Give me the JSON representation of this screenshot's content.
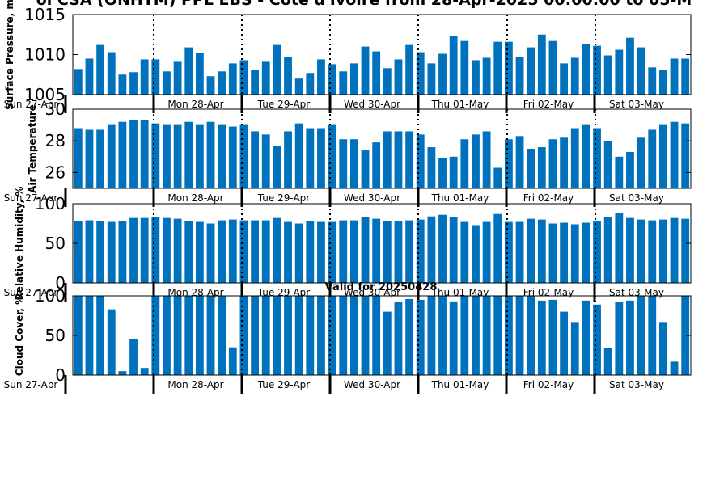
{
  "figure": {
    "title": "ol CSA (ONHTM) PPL EBS - Cote d'Ivoire from 28-Apr-2025 00:00:00 to 05-M",
    "valid_label": "Valid for 20250428",
    "bar_color": "#0072bd"
  },
  "chart_data": [
    {
      "type": "bar",
      "ylabel": "Surface Pressure, m",
      "ylim": [
        1005,
        1015
      ],
      "yticks": [
        1005,
        1010,
        1015
      ],
      "tick_labels": [
        "Sun 27-Apr",
        "Mon 28-Apr",
        "Tue 29-Apr",
        "Wed 30-Apr",
        "Thu 01-May",
        "Fri 02-May",
        "Sat 03-May"
      ],
      "values": [
        1008.2,
        1009.5,
        1011.2,
        1010.3,
        1007.5,
        1007.8,
        1009.4,
        1009.4,
        1007.9,
        1009.1,
        1010.9,
        1010.2,
        1007.3,
        1007.9,
        1008.9,
        1009.3,
        1008.1,
        1009.1,
        1011.2,
        1009.7,
        1007.0,
        1007.7,
        1009.4,
        1008.8,
        1007.9,
        1008.9,
        1011.0,
        1010.4,
        1008.3,
        1009.4,
        1011.2,
        1010.3,
        1008.9,
        1010.1,
        1012.3,
        1011.7,
        1009.3,
        1009.6,
        1011.6,
        1011.6,
        1009.7,
        1010.9,
        1012.5,
        1011.7,
        1008.9,
        1009.6,
        1011.3,
        1011.1,
        1009.9,
        1010.6,
        1012.1,
        1010.9,
        1008.4,
        1008.1,
        1009.5,
        1009.5
      ]
    },
    {
      "type": "bar",
      "ylabel": "Air Temperature",
      "ylim": [
        25,
        30
      ],
      "yticks": [
        26,
        28,
        30
      ],
      "tick_labels": [
        "Sun 27-Apr",
        "Mon 28-Apr",
        "Tue 29-Apr",
        "Wed 30-Apr",
        "Thu 01-May",
        "Fri 02-May",
        "Sat 03-May"
      ],
      "values": [
        28.8,
        28.7,
        28.7,
        29.0,
        29.2,
        29.3,
        29.3,
        29.1,
        29.0,
        29.0,
        29.2,
        29.0,
        29.2,
        29.0,
        28.9,
        29.0,
        28.6,
        28.4,
        27.7,
        28.6,
        29.1,
        28.8,
        28.8,
        29.0,
        28.1,
        28.1,
        27.4,
        27.9,
        28.6,
        28.6,
        28.6,
        28.4,
        27.6,
        26.9,
        27.0,
        28.1,
        28.4,
        28.6,
        26.3,
        28.1,
        28.3,
        27.5,
        27.6,
        28.1,
        28.2,
        28.8,
        29.0,
        28.8,
        28.0,
        27.0,
        27.3,
        28.2,
        28.7,
        29.0,
        29.2,
        29.1
      ]
    },
    {
      "type": "bar",
      "ylabel": "Relative Humidity, %",
      "ylim": [
        0,
        100
      ],
      "yticks": [
        0,
        50,
        100
      ],
      "tick_labels": [
        "Sun 27-Apr",
        "Mon 28-Apr",
        "Tue 29-Apr",
        "Wed 30-Apr",
        "Thu 01-May",
        "Fri 02-May",
        "Sat 03-May"
      ],
      "values": [
        78,
        79,
        78,
        77,
        78,
        82,
        82,
        83,
        82,
        81,
        78,
        77,
        75,
        79,
        80,
        79,
        79,
        79,
        82,
        77,
        75,
        78,
        77,
        77,
        79,
        79,
        83,
        81,
        78,
        78,
        79,
        80,
        84,
        86,
        83,
        77,
        73,
        77,
        87,
        77,
        77,
        81,
        80,
        75,
        76,
        74,
        76,
        78,
        83,
        88,
        82,
        80,
        79,
        80,
        82,
        81
      ]
    },
    {
      "type": "bar",
      "ylabel": "Cloud Cover, %",
      "ylim": [
        0,
        100
      ],
      "yticks": [
        0,
        50,
        100
      ],
      "tick_labels": [
        "Sun 27-Apr",
        "Mon 28-Apr",
        "Tue 29-Apr",
        "Wed 30-Apr",
        "Thu 01-May",
        "Fri 02-May",
        "Sat 03-May"
      ],
      "values": [
        100,
        100,
        100,
        83,
        5,
        45,
        9,
        100,
        100,
        100,
        100,
        100,
        100,
        100,
        35,
        100,
        100,
        100,
        100,
        100,
        100,
        100,
        100,
        100,
        100,
        100,
        100,
        100,
        80,
        92,
        96,
        95,
        100,
        100,
        93,
        100,
        100,
        100,
        100,
        100,
        100,
        100,
        94,
        95,
        80,
        67,
        94,
        89,
        34,
        92,
        94,
        100,
        100,
        67,
        17,
        100
      ]
    }
  ]
}
